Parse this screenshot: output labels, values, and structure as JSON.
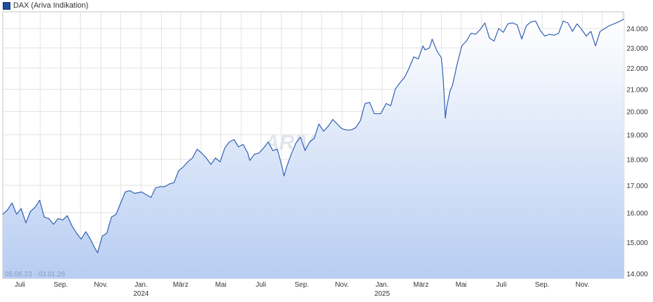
{
  "legend": {
    "label": "DAX (Ariva Indikation)",
    "color": "#1f4e9c"
  },
  "watermark": "ARIVA.DE",
  "date_range": "05.06.23 - 03.01.26",
  "chart_data": {
    "type": "area",
    "title": "",
    "xlabel": "",
    "ylabel": "",
    "y_scale": "log",
    "ylim": [
      13850,
      24900
    ],
    "grid": true,
    "legend_position": "top-left",
    "line_color": "#2f5fb3",
    "fill_top_color": "#ffffff",
    "fill_bottom_color": "#b7cdf2",
    "x_ticks": [
      "Juli",
      "Sep.",
      "Nov.",
      "Jan.",
      "März",
      "Mai",
      "Juli",
      "Sep.",
      "Nov.",
      "Jan.",
      "März",
      "Mai",
      "Juli",
      "Sep.",
      "Nov."
    ],
    "x_tick_dates": [
      "2023-07-01",
      "2023-09-01",
      "2023-11-01",
      "2024-01-01",
      "2024-03-01",
      "2024-05-01",
      "2024-07-01",
      "2024-09-01",
      "2024-11-01",
      "2025-01-01",
      "2025-03-01",
      "2025-05-01",
      "2025-07-01",
      "2025-09-01",
      "2025-11-01"
    ],
    "year_labels": [
      {
        "label": "2024",
        "date": "2024-01-01"
      },
      {
        "label": "2025",
        "date": "2025-01-01"
      }
    ],
    "y_ticks": [
      14000,
      15000,
      16000,
      17000,
      18000,
      19000,
      20000,
      21000,
      22000,
      23000,
      24000
    ],
    "y_tick_labels": [
      "14.000",
      "15.000",
      "16.000",
      "17.000",
      "18.000",
      "19.000",
      "20.000",
      "21.000",
      "22.000",
      "23.000",
      "24.000"
    ],
    "series": [
      {
        "name": "DAX (Ariva Indikation)",
        "points": [
          [
            "2023-06-05",
            15950
          ],
          [
            "2023-06-12",
            16100
          ],
          [
            "2023-06-19",
            16350
          ],
          [
            "2023-06-26",
            15950
          ],
          [
            "2023-07-03",
            16150
          ],
          [
            "2023-07-10",
            15650
          ],
          [
            "2023-07-17",
            16050
          ],
          [
            "2023-07-24",
            16200
          ],
          [
            "2023-07-31",
            16450
          ],
          [
            "2023-08-07",
            15850
          ],
          [
            "2023-08-14",
            15800
          ],
          [
            "2023-08-21",
            15600
          ],
          [
            "2023-08-28",
            15800
          ],
          [
            "2023-09-04",
            15750
          ],
          [
            "2023-09-11",
            15900
          ],
          [
            "2023-09-18",
            15550
          ],
          [
            "2023-09-25",
            15300
          ],
          [
            "2023-10-02",
            15100
          ],
          [
            "2023-10-09",
            15350
          ],
          [
            "2023-10-16",
            15100
          ],
          [
            "2023-10-23",
            14800
          ],
          [
            "2023-10-27",
            14650
          ],
          [
            "2023-11-03",
            15200
          ],
          [
            "2023-11-10",
            15300
          ],
          [
            "2023-11-17",
            15850
          ],
          [
            "2023-11-24",
            15950
          ],
          [
            "2023-12-01",
            16350
          ],
          [
            "2023-12-08",
            16750
          ],
          [
            "2023-12-15",
            16800
          ],
          [
            "2023-12-22",
            16700
          ],
          [
            "2024-01-02",
            16750
          ],
          [
            "2024-01-09",
            16650
          ],
          [
            "2024-01-16",
            16550
          ],
          [
            "2024-01-23",
            16900
          ],
          [
            "2024-01-30",
            16950
          ],
          [
            "2024-02-06",
            16950
          ],
          [
            "2024-02-13",
            17050
          ],
          [
            "2024-02-20",
            17100
          ],
          [
            "2024-02-27",
            17550
          ],
          [
            "2024-03-05",
            17700
          ],
          [
            "2024-03-12",
            17900
          ],
          [
            "2024-03-19",
            18050
          ],
          [
            "2024-03-26",
            18400
          ],
          [
            "2024-04-02",
            18250
          ],
          [
            "2024-04-09",
            18050
          ],
          [
            "2024-04-16",
            17800
          ],
          [
            "2024-04-23",
            18050
          ],
          [
            "2024-04-30",
            17900
          ],
          [
            "2024-05-07",
            18450
          ],
          [
            "2024-05-14",
            18700
          ],
          [
            "2024-05-21",
            18800
          ],
          [
            "2024-05-28",
            18500
          ],
          [
            "2024-06-04",
            18600
          ],
          [
            "2024-06-11",
            18250
          ],
          [
            "2024-06-14",
            17950
          ],
          [
            "2024-06-21",
            18200
          ],
          [
            "2024-06-28",
            18250
          ],
          [
            "2024-07-05",
            18450
          ],
          [
            "2024-07-12",
            18700
          ],
          [
            "2024-07-19",
            18350
          ],
          [
            "2024-07-26",
            18400
          ],
          [
            "2024-08-02",
            17700
          ],
          [
            "2024-08-05",
            17350
          ],
          [
            "2024-08-09",
            17700
          ],
          [
            "2024-08-16",
            18200
          ],
          [
            "2024-08-23",
            18650
          ],
          [
            "2024-08-30",
            18900
          ],
          [
            "2024-09-06",
            18350
          ],
          [
            "2024-09-13",
            18700
          ],
          [
            "2024-09-20",
            18850
          ],
          [
            "2024-09-27",
            19450
          ],
          [
            "2024-10-04",
            19150
          ],
          [
            "2024-10-11",
            19350
          ],
          [
            "2024-10-18",
            19650
          ],
          [
            "2024-10-25",
            19450
          ],
          [
            "2024-11-01",
            19250
          ],
          [
            "2024-11-08",
            19200
          ],
          [
            "2024-11-15",
            19200
          ],
          [
            "2024-11-22",
            19300
          ],
          [
            "2024-11-29",
            19600
          ],
          [
            "2024-12-06",
            20350
          ],
          [
            "2024-12-13",
            20400
          ],
          [
            "2024-12-20",
            19900
          ],
          [
            "2024-12-30",
            19900
          ],
          [
            "2025-01-07",
            20350
          ],
          [
            "2025-01-14",
            20250
          ],
          [
            "2025-01-21",
            21000
          ],
          [
            "2025-01-28",
            21300
          ],
          [
            "2025-02-04",
            21550
          ],
          [
            "2025-02-11",
            22000
          ],
          [
            "2025-02-18",
            22550
          ],
          [
            "2025-02-25",
            22450
          ],
          [
            "2025-03-04",
            23100
          ],
          [
            "2025-03-07",
            22900
          ],
          [
            "2025-03-14",
            23000
          ],
          [
            "2025-03-18",
            23450
          ],
          [
            "2025-03-25",
            22850
          ],
          [
            "2025-04-01",
            22500
          ],
          [
            "2025-04-04",
            21400
          ],
          [
            "2025-04-07",
            19700
          ],
          [
            "2025-04-09",
            20200
          ],
          [
            "2025-04-14",
            20900
          ],
          [
            "2025-04-18",
            21200
          ],
          [
            "2025-04-25",
            22200
          ],
          [
            "2025-05-02",
            23100
          ],
          [
            "2025-05-09",
            23350
          ],
          [
            "2025-05-16",
            23750
          ],
          [
            "2025-05-23",
            23700
          ],
          [
            "2025-05-30",
            23950
          ],
          [
            "2025-06-06",
            24300
          ],
          [
            "2025-06-13",
            23500
          ],
          [
            "2025-06-20",
            23350
          ],
          [
            "2025-06-27",
            24000
          ],
          [
            "2025-07-04",
            23800
          ],
          [
            "2025-07-11",
            24250
          ],
          [
            "2025-07-18",
            24300
          ],
          [
            "2025-07-25",
            24200
          ],
          [
            "2025-08-01",
            23450
          ],
          [
            "2025-08-08",
            24150
          ],
          [
            "2025-08-15",
            24350
          ],
          [
            "2025-08-22",
            24400
          ],
          [
            "2025-08-29",
            23900
          ],
          [
            "2025-09-05",
            23600
          ],
          [
            "2025-09-12",
            23700
          ],
          [
            "2025-09-19",
            23650
          ],
          [
            "2025-09-26",
            23750
          ],
          [
            "2025-10-03",
            24400
          ],
          [
            "2025-10-10",
            24300
          ],
          [
            "2025-10-17",
            23850
          ],
          [
            "2025-10-24",
            24250
          ],
          [
            "2025-10-31",
            23950
          ],
          [
            "2025-11-07",
            23600
          ],
          [
            "2025-11-14",
            23850
          ],
          [
            "2025-11-21",
            23100
          ],
          [
            "2025-11-28",
            23850
          ],
          [
            "2025-12-05",
            24000
          ],
          [
            "2025-12-12",
            24150
          ],
          [
            "2025-12-19",
            24250
          ],
          [
            "2025-12-26",
            24350
          ],
          [
            "2026-01-03",
            24500
          ]
        ]
      }
    ]
  }
}
